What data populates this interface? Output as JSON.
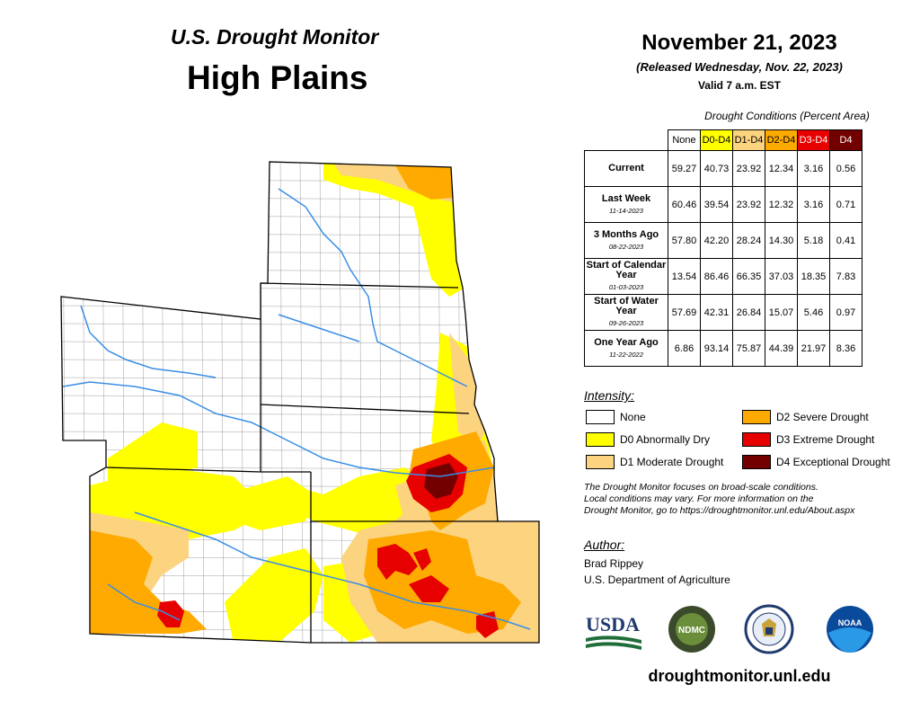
{
  "header": {
    "title_top": "U.S. Drought Monitor",
    "title_region": "High Plains",
    "date": "November 21, 2023",
    "released": "(Released Wednesday, Nov. 22, 2023)",
    "valid": "Valid 7 a.m. EST"
  },
  "table": {
    "caption": "Drought Conditions (Percent Area)",
    "columns": [
      {
        "label": "None",
        "color": "#ffffff",
        "text_color": "#000000"
      },
      {
        "label": "D0-D4",
        "color": "#ffff00",
        "text_color": "#000000"
      },
      {
        "label": "D1-D4",
        "color": "#fcd37f",
        "text_color": "#000000"
      },
      {
        "label": "D2-D4",
        "color": "#ffaa00",
        "text_color": "#000000"
      },
      {
        "label": "D3-D4",
        "color": "#e60000",
        "text_color": "#ffffff"
      },
      {
        "label": "D4",
        "color": "#730000",
        "text_color": "#ffffff"
      }
    ],
    "rows": [
      {
        "label": "Current",
        "sub": "",
        "values": [
          "59.27",
          "40.73",
          "23.92",
          "12.34",
          "3.16",
          "0.56"
        ]
      },
      {
        "label": "Last Week",
        "sub": "11-14-2023",
        "values": [
          "60.46",
          "39.54",
          "23.92",
          "12.32",
          "3.16",
          "0.71"
        ]
      },
      {
        "label": "3 Months Ago",
        "sub": "08-22-2023",
        "values": [
          "57.80",
          "42.20",
          "28.24",
          "14.30",
          "5.18",
          "0.41"
        ]
      },
      {
        "label": "Start of Calendar Year",
        "sub": "01-03-2023",
        "values": [
          "13.54",
          "86.46",
          "66.35",
          "37.03",
          "18.35",
          "7.83"
        ]
      },
      {
        "label": "Start of Water Year",
        "sub": "09-26-2023",
        "values": [
          "57.69",
          "42.31",
          "26.84",
          "15.07",
          "5.46",
          "0.97"
        ]
      },
      {
        "label": "One Year Ago",
        "sub": "11-22-2022",
        "values": [
          "6.86",
          "93.14",
          "75.87",
          "44.39",
          "21.97",
          "8.36"
        ]
      }
    ]
  },
  "legend": {
    "title": "Intensity:",
    "items": [
      {
        "label": "None",
        "color": "#ffffff"
      },
      {
        "label": "D0 Abnormally Dry",
        "color": "#ffff00"
      },
      {
        "label": "D1 Moderate Drought",
        "color": "#fcd37f"
      },
      {
        "label": "D2 Severe Drought",
        "color": "#ffaa00"
      },
      {
        "label": "D3 Extreme Drought",
        "color": "#e60000"
      },
      {
        "label": "D4 Exceptional Drought",
        "color": "#730000"
      }
    ]
  },
  "note": {
    "line1": "The Drought Monitor focuses on broad-scale conditions.",
    "line2": "Local conditions may vary. For more information on the",
    "line3": "Drought Monitor, go to https://droughtmonitor.unl.edu/About.aspx"
  },
  "author": {
    "title": "Author:",
    "name": "Brad Rippey",
    "org": "U.S. Department of Agriculture"
  },
  "logos": {
    "usda": "USDA",
    "ndmc": "NDMC",
    "noaa": "NOAA"
  },
  "website": "droughtmonitor.unl.edu",
  "colors": {
    "river": "#3a8ee6",
    "border": "#000000",
    "county": "#666666"
  }
}
